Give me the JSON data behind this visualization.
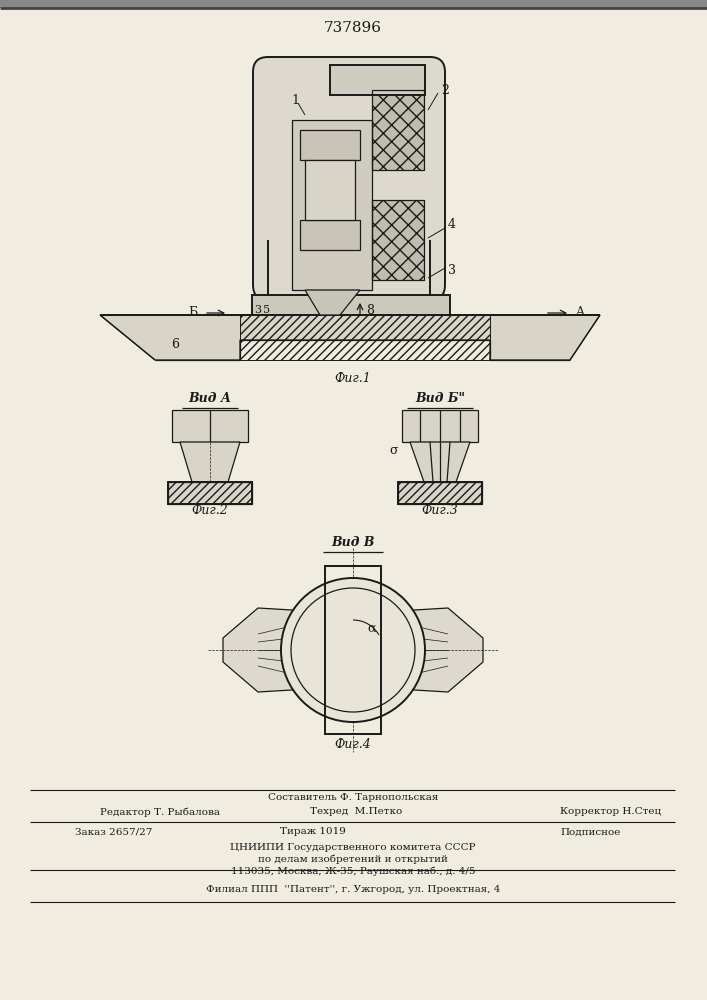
{
  "title": "737896",
  "bg_color": "#f0ece0",
  "line_color": "#1a1a1a",
  "footer_lines": [
    "Составитель Ф. Тарнопольская",
    "Редактор Т. Рыбалова",
    "Техред  М.Петко",
    "Корректор Н.Стец",
    "Заказ 2657/27",
    "Тираж 1019",
    "Подписное",
    "ЦНИИПИ Государственного комитета СССР",
    "по делам изобретений и открытий",
    "113035, Москва, Ж-35, Раушская наб., д. 4/5",
    "Филиал ППП  ''Патент'', г. Ужгород, ул. Проектная, 4"
  ]
}
